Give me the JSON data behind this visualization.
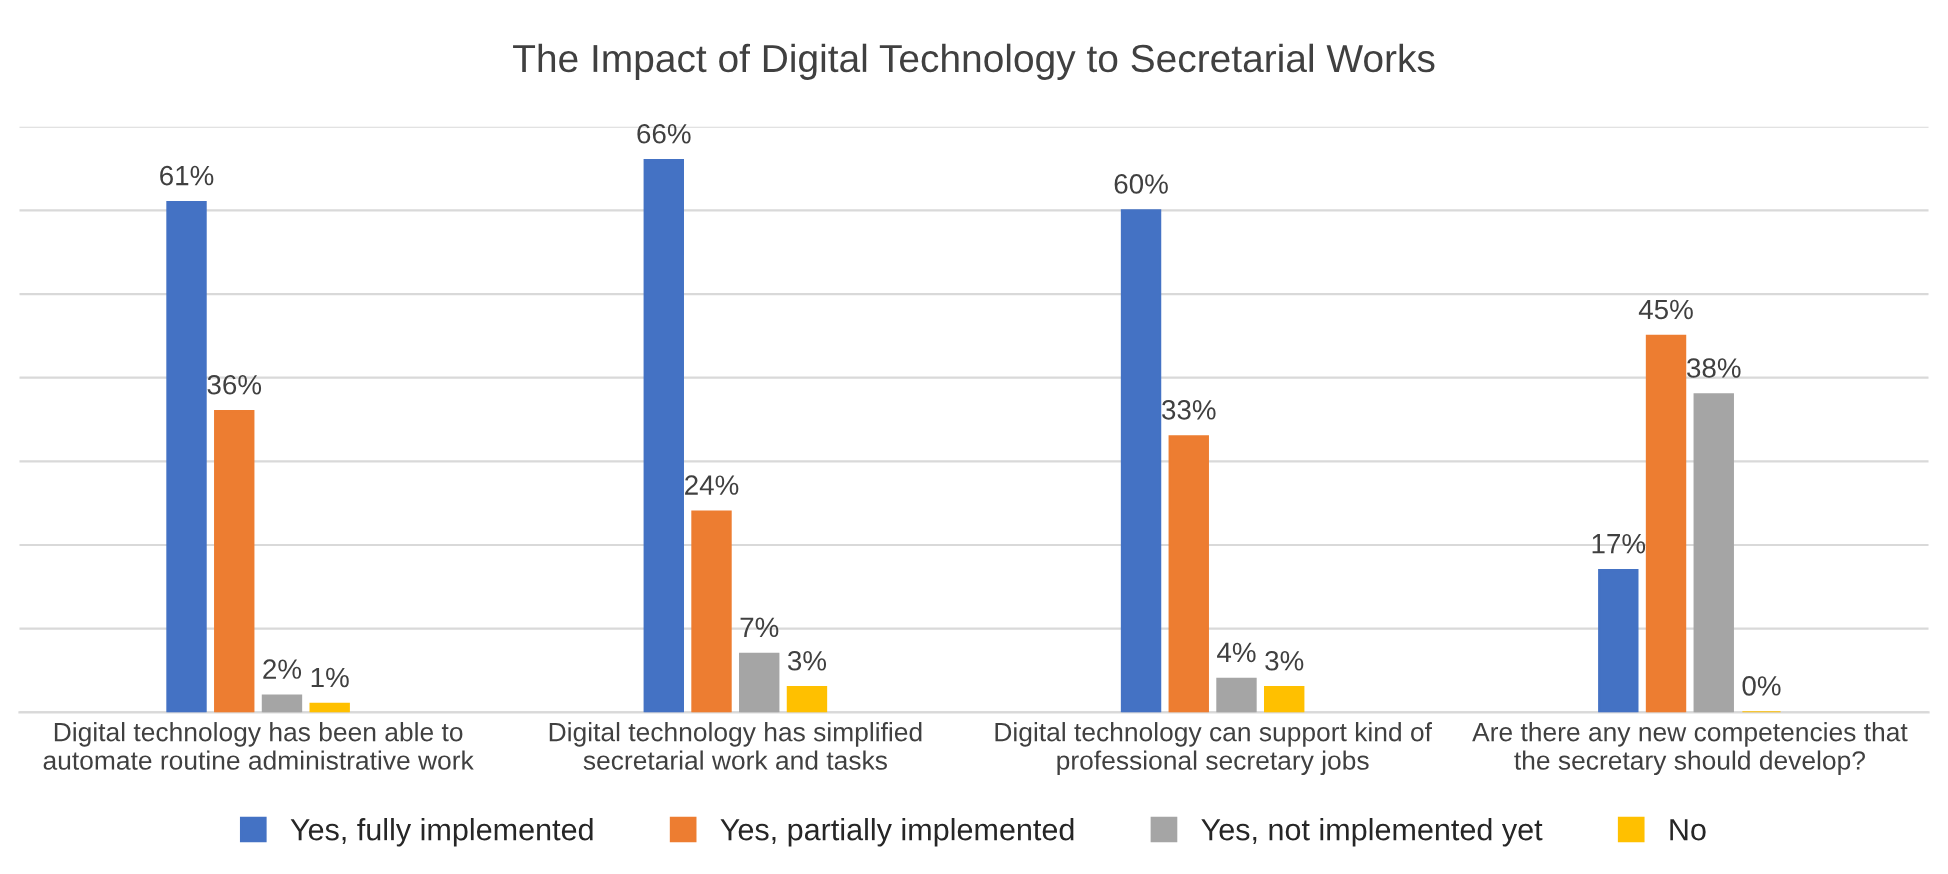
{
  "chart_data": {
    "type": "bar",
    "title": "The Impact of Digital Technology to Secretarial Works",
    "categories": [
      "Digital technology has been able to\nautomate routine administrative work",
      "Digital technology has simplified\nsecretarial work and tasks",
      "Digital technology can support kind of\nprofessional secretary jobs",
      "Are there any new competencies that\nthe secretary should develop?"
    ],
    "series": [
      {
        "name": "Yes, fully implemented",
        "color": "#4472c4",
        "values": [
          61,
          66,
          60,
          17
        ],
        "value_labels": [
          "61%",
          "66%",
          "60%",
          "17%"
        ]
      },
      {
        "name": "Yes, partially implemented",
        "color": "#ed7d31",
        "values": [
          36,
          24,
          33,
          45
        ],
        "value_labels": [
          "36%",
          "24%",
          "33%",
          "45%"
        ]
      },
      {
        "name": "Yes, not implemented yet",
        "color": "#a5a5a5",
        "values": [
          2,
          7,
          4,
          38
        ],
        "value_labels": [
          "2%",
          "7%",
          "4%",
          "38%"
        ]
      },
      {
        "name": "No",
        "color": "#ffc000",
        "values": [
          1,
          3,
          3,
          0
        ],
        "value_labels": [
          "1%",
          "3%",
          "3%",
          "0%"
        ]
      }
    ],
    "ylim": [
      0,
      70
    ],
    "yticks": [
      {
        "value": 0,
        "label": null
      },
      {
        "value": 10,
        "label": null
      },
      {
        "value": 20,
        "label": null
      },
      {
        "value": 30,
        "label": null
      },
      {
        "value": 40,
        "label": null
      },
      {
        "value": 50,
        "label": null
      },
      {
        "value": 60,
        "label": null
      },
      {
        "value": 70,
        "label": null
      }
    ],
    "tick_labels": "x",
    "grid": "y",
    "legend": "bottom"
  }
}
